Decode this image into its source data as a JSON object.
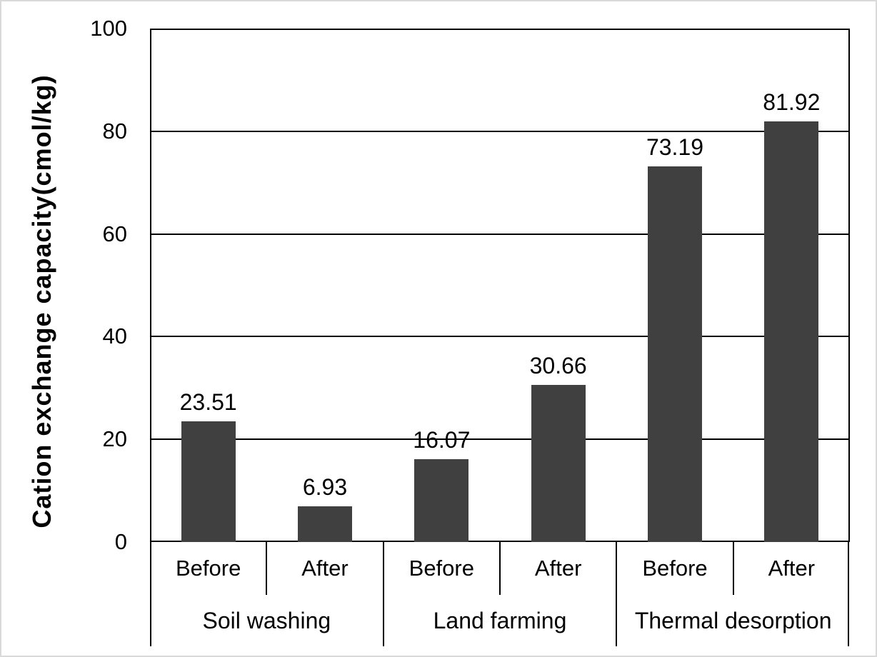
{
  "chart_data": {
    "type": "bar",
    "title": "",
    "xlabel": "",
    "ylabel": "Cation exchange capacity(cmol/kg)",
    "ylim": [
      0,
      100
    ],
    "yticks": [
      0,
      20,
      40,
      60,
      80,
      100
    ],
    "grid": "horizontal",
    "legend_position": "none",
    "bar_color": "#404040",
    "line_color": "#000000",
    "background_color": "#ffffff",
    "frame_border_color": "#d9d9d9",
    "categories": [
      "Before",
      "After"
    ],
    "groups": [
      {
        "label": "Soil washing",
        "bars": [
          {
            "category": "Before",
            "value": 23.51,
            "display": "23.51"
          },
          {
            "category": "After",
            "value": 6.93,
            "display": "6.93"
          }
        ]
      },
      {
        "label": "Land farming",
        "bars": [
          {
            "category": "Before",
            "value": 16.07,
            "display": "16.07"
          },
          {
            "category": "After",
            "value": 30.66,
            "display": "30.66"
          }
        ]
      },
      {
        "label": "Thermal desorption",
        "bars": [
          {
            "category": "Before",
            "value": 73.19,
            "display": "73.19"
          },
          {
            "category": "After",
            "value": 81.92,
            "display": "81.92"
          }
        ]
      }
    ]
  }
}
